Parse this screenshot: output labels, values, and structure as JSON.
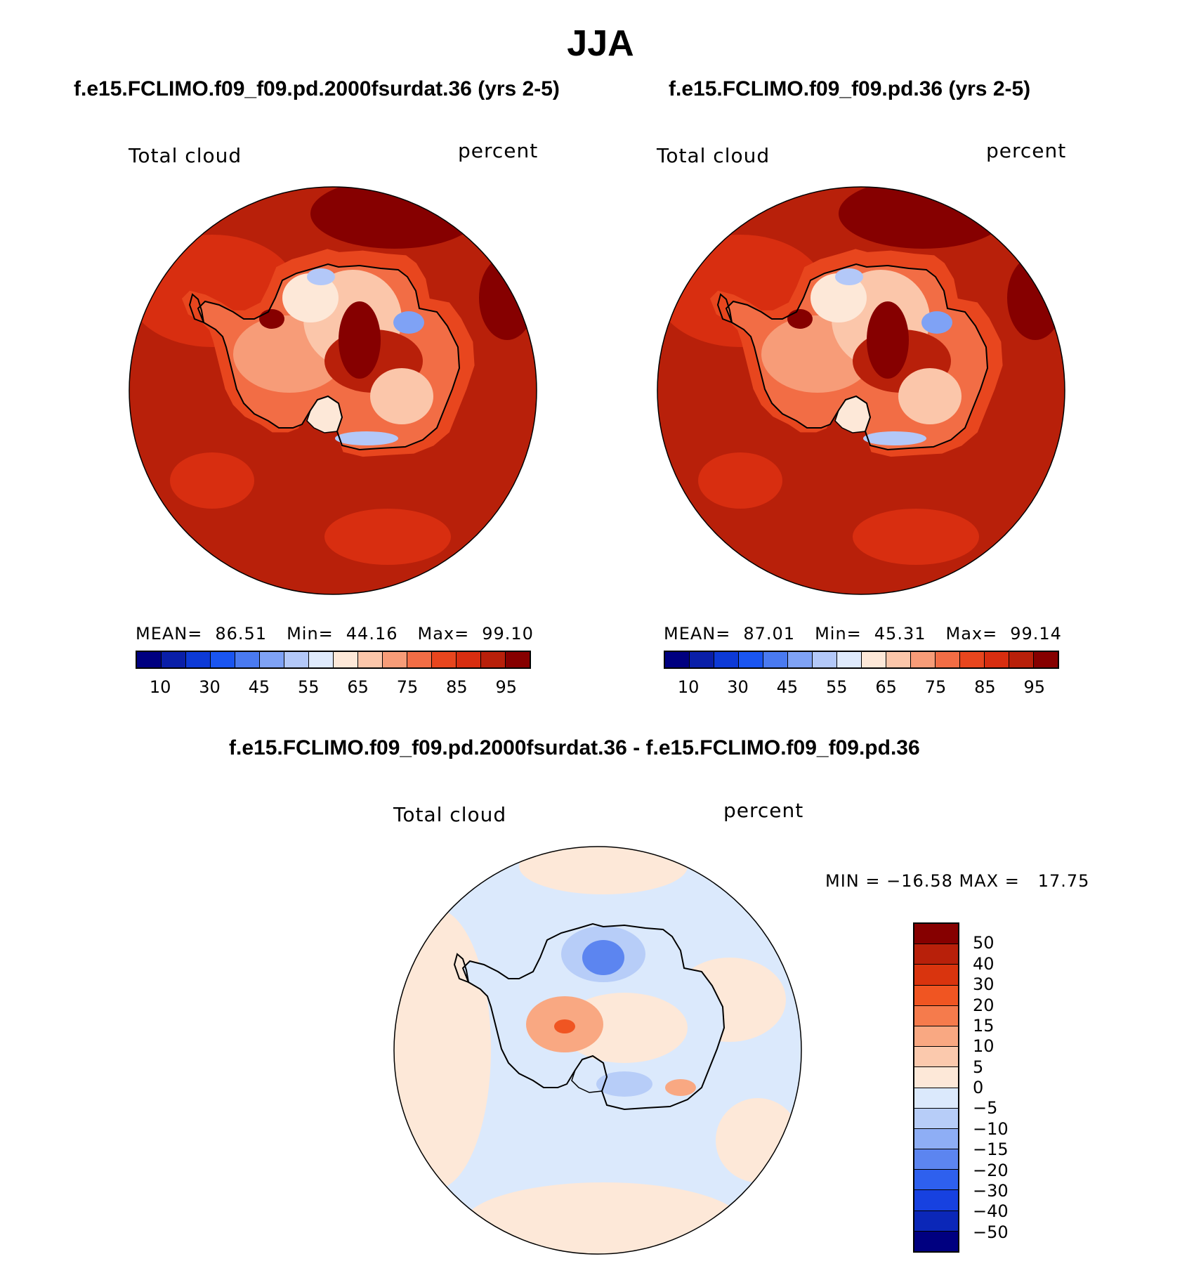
{
  "figure": {
    "title": "JJA"
  },
  "panels": [
    {
      "title": "f.e15.FCLIMO.f09_f09.pd.2000fsurdat.36 (yrs 2-5)",
      "left_label": "Total cloud",
      "right_label": "percent",
      "mean_label": "MEAN=",
      "mean": "86.51",
      "min_label": "Min=",
      "min": "44.16",
      "max_label": "Max=",
      "max": "99.10"
    },
    {
      "title": "f.e15.FCLIMO.f09_f09.pd.36 (yrs 2-5)",
      "left_label": "Total cloud",
      "right_label": "percent",
      "mean_label": "MEAN=",
      "mean": "87.01",
      "min_label": "Min=",
      "min": "45.31",
      "max_label": "Max=",
      "max": "99.14"
    }
  ],
  "diff_panel": {
    "title": "f.e15.FCLIMO.f09_f09.pd.2000fsurdat.36 - f.e15.FCLIMO.f09_f09.pd.36",
    "left_label": "Total cloud",
    "right_label": "percent",
    "minmax": "MIN = −16.58 MAX =   17.75"
  },
  "colorbar_abs": {
    "colors": [
      "#000080",
      "#0a1fa8",
      "#0d3ad6",
      "#1a55f0",
      "#4a7af0",
      "#7fa2f5",
      "#b3c8f8",
      "#dfeafc",
      "#fde8d8",
      "#fbc6aa",
      "#f79c78",
      "#f26d45",
      "#e8461e",
      "#d82e10",
      "#b8200a",
      "#860000"
    ],
    "ticks": [
      "10",
      "30",
      "45",
      "55",
      "65",
      "75",
      "85",
      "95"
    ]
  },
  "colorbar_diff": {
    "colors": [
      "#860000",
      "#b8200a",
      "#d9340e",
      "#f05522",
      "#f57b4c",
      "#f9a882",
      "#fbc9ad",
      "#fde8d8",
      "#dbe9fc",
      "#b7cdf8",
      "#8eaef5",
      "#5c85f0",
      "#2e60ee",
      "#1741e0",
      "#0b27b8",
      "#000080"
    ],
    "ticks": [
      "50",
      "40",
      "30",
      "20",
      "15",
      "10",
      "5",
      "0",
      "−5",
      "−10",
      "−15",
      "−20",
      "−30",
      "−40",
      "−50"
    ]
  },
  "map_colors": {
    "ocean_abs": "#b8200a",
    "ocean_abs_dark": "#860000",
    "ocean_abs_light": "#d82e10",
    "land_light": "#f79c78",
    "land_lighter": "#fbc6aa",
    "land_pale": "#fde8d8",
    "land_blue": "#b3c8f8",
    "land_blue2": "#7fa2f5",
    "diff_pos": "#fde8d8",
    "diff_neg": "#dbe9fc",
    "diff_neg2": "#b7cdf8",
    "diff_neg3": "#5c85f0",
    "diff_pos2": "#f9a882",
    "diff_pos3": "#f05522"
  }
}
